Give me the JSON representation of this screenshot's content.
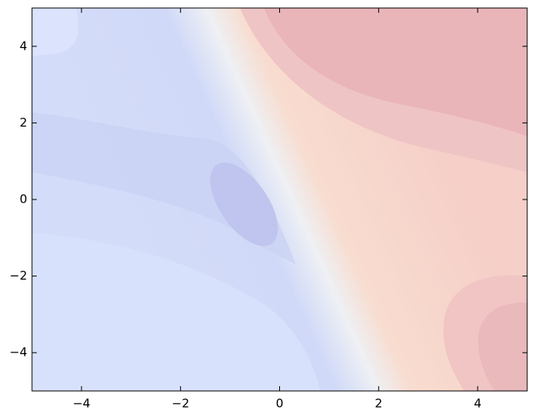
{
  "chart_data": {
    "type": "contour",
    "xlim": [
      -5,
      5
    ],
    "ylim": [
      -5,
      5
    ],
    "xticks": [
      {
        "value": -4,
        "label": "−4"
      },
      {
        "value": -2,
        "label": "−2"
      },
      0,
      2,
      4
    ],
    "yticks": [
      {
        "value": -4,
        "label": "−4"
      },
      {
        "value": -2,
        "label": "−2"
      },
      0,
      2,
      4
    ]
  }
}
